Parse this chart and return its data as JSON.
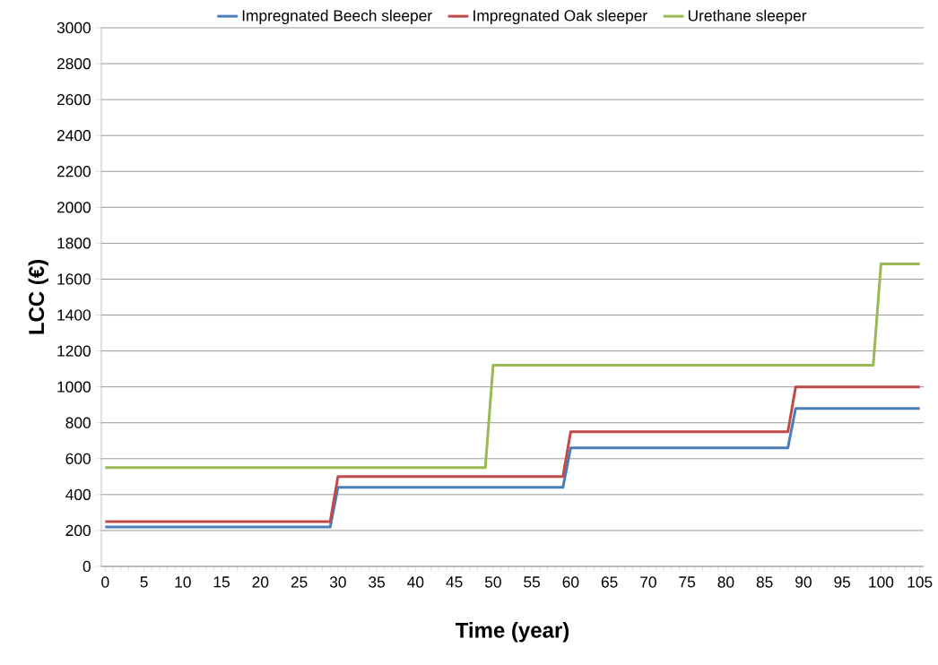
{
  "chart_data": {
    "type": "line",
    "xlabel": "Time (year)",
    "ylabel": "LCC (€)",
    "xlim": [
      -0.5,
      105.5
    ],
    "ylim": [
      0,
      3000
    ],
    "xticks": [
      0,
      5,
      10,
      15,
      20,
      25,
      30,
      35,
      40,
      45,
      50,
      55,
      60,
      65,
      70,
      75,
      80,
      85,
      90,
      95,
      100,
      105
    ],
    "yticks": [
      0,
      200,
      400,
      600,
      800,
      1000,
      1200,
      1400,
      1600,
      1800,
      2000,
      2200,
      2400,
      2600,
      2800,
      3000
    ],
    "grid": "y",
    "legend": "top",
    "marker": "none",
    "line_style": "solid",
    "series": [
      {
        "name": "Impregnated Beech sleeper",
        "color": "#4a7ebb",
        "x": [
          0,
          29,
          30,
          59,
          60,
          88,
          89,
          105
        ],
        "values": [
          220,
          220,
          440,
          440,
          660,
          660,
          880,
          880
        ]
      },
      {
        "name": "Impregnated Oak sleeper",
        "color": "#be4b48",
        "x": [
          0,
          29,
          30,
          59,
          60,
          88,
          89,
          105
        ],
        "values": [
          250,
          250,
          500,
          500,
          750,
          750,
          1000,
          1000
        ]
      },
      {
        "name": "Urethane sleeper",
        "color": "#98b954",
        "x": [
          0,
          49,
          50,
          99,
          100,
          105
        ],
        "values": [
          550,
          550,
          1120,
          1120,
          1685,
          1685
        ]
      }
    ]
  }
}
